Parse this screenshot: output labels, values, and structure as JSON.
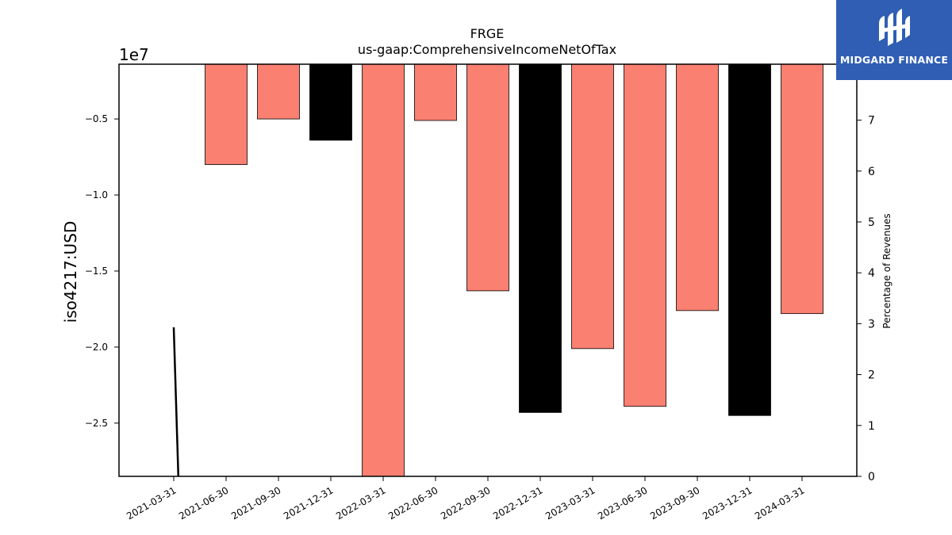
{
  "chart_data": {
    "type": "bar",
    "title": "FRGE",
    "subtitle": "us-gaap:ComprehensiveIncomeNetOfTax",
    "ylabel": "iso4217:USD",
    "y_offset_label": "1e7",
    "y2label": "Percentage of Revenues",
    "categories": [
      "2021-03-31",
      "2021-06-30",
      "2021-09-30",
      "2021-12-31",
      "2022-03-31",
      "2022-06-30",
      "2022-09-30",
      "2022-12-31",
      "2023-03-31",
      "2023-06-30",
      "2023-09-30",
      "2023-12-31",
      "2024-03-31"
    ],
    "values": [
      null,
      -8000000,
      -5000000,
      -6400000,
      -28500000,
      -5100000,
      -16300000,
      -24300000,
      -20100000,
      -23900000,
      -17600000,
      -24500000,
      -17800000
    ],
    "bar_colors": [
      null,
      "#fa8072",
      "#fa8072",
      "#000000",
      "#fa8072",
      "#fa8072",
      "#fa8072",
      "#000000",
      "#fa8072",
      "#fa8072",
      "#fa8072",
      "#000000",
      "#fa8072"
    ],
    "ylim": [
      -28500000,
      -1400000
    ],
    "yticks": [
      -5000000,
      -10000000,
      -15000000,
      -20000000,
      -25000000
    ],
    "ytick_labels": [
      "−0.5",
      "−1.0",
      "−1.5",
      "−2.0",
      "−2.5"
    ],
    "y2lim": [
      0,
      8.1
    ],
    "y2ticks": [
      0,
      1,
      2,
      3,
      4,
      5,
      6,
      7
    ],
    "y2tick_labels": [
      "0",
      "1",
      "2",
      "3",
      "4",
      "5",
      "6",
      "7"
    ],
    "line_series": {
      "axis": "secondary",
      "color": "#000000",
      "points": [
        {
          "x": "2021-03-31",
          "y": 2.93
        },
        {
          "x": "2021-04-08",
          "y": 0
        }
      ]
    },
    "grid": false
  },
  "logo": {
    "text": "MIDGARD FINANCE",
    "background": "#2f5eb4"
  }
}
